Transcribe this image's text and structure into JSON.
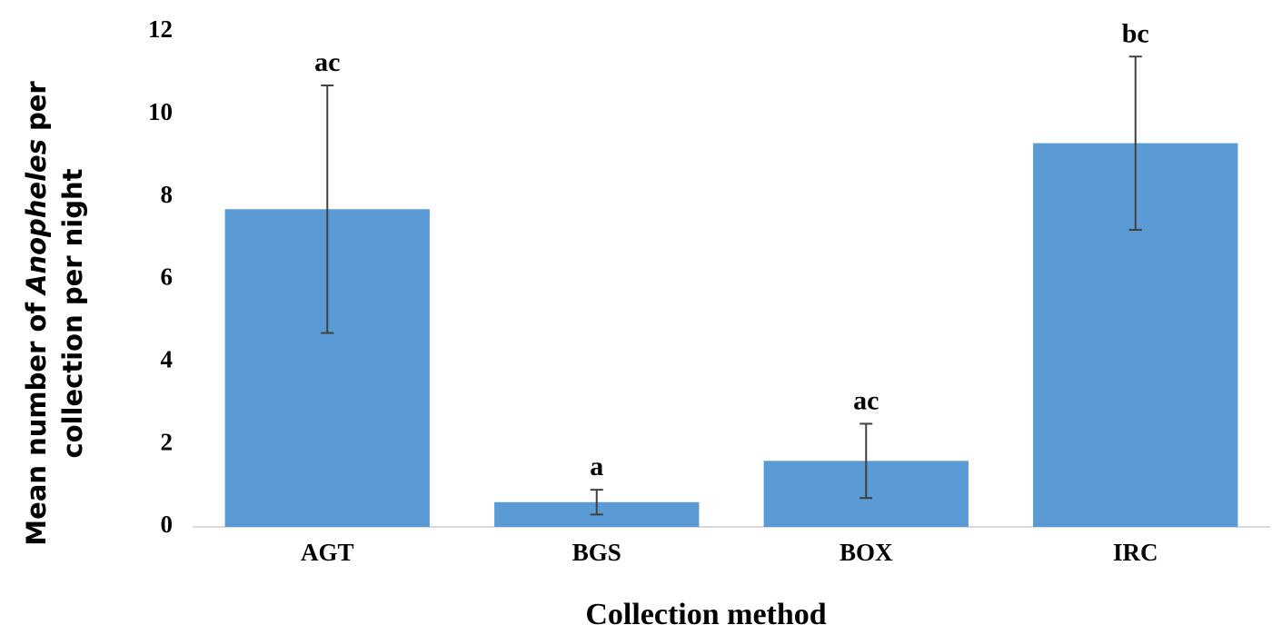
{
  "chart_data": {
    "type": "bar",
    "categories": [
      "AGT",
      "BGS",
      "BOX",
      "IRC"
    ],
    "values": [
      7.7,
      0.6,
      1.6,
      9.3
    ],
    "errors": [
      3.0,
      0.3,
      0.9,
      2.1
    ],
    "significance_labels": [
      "ac",
      "a",
      "ac",
      "bc"
    ],
    "color": "#5b9bd5",
    "error_color": "#404040",
    "ylim": [
      0,
      12
    ],
    "yticks": [
      0,
      2,
      4,
      6,
      8,
      10,
      12
    ],
    "ylabel": [
      "Mean number of",
      "Anopheles",
      "per",
      "collection per night"
    ],
    "xlabel": "Collection method"
  }
}
